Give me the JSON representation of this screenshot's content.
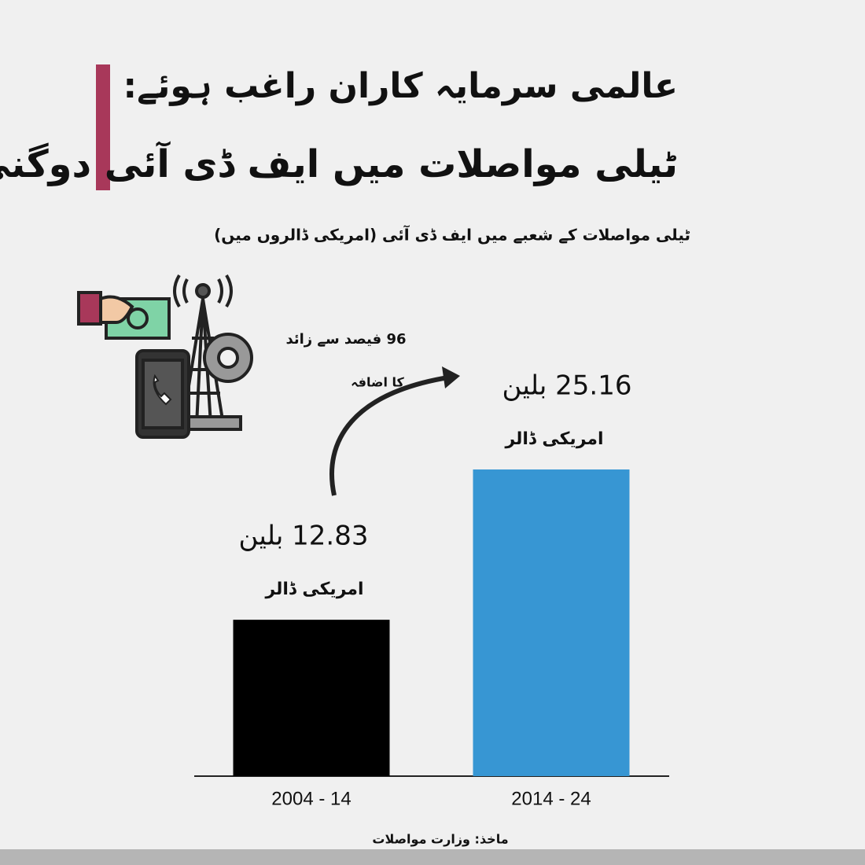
{
  "chart_data": {
    "type": "bar",
    "title": "عالمی سرمایہ کاران راغب ہوئے:",
    "subtitle": "ٹیلی مواصلات میں ایف ڈی آئی دوگنی ہوئی!",
    "caption": "ٹیلی مواصلات کے شعبے میں ایف ڈی آئی (امریکی ڈالروں میں)",
    "annotation": [
      "96 فیصد سے زائد",
      "کا اضافہ"
    ],
    "categories": [
      "2004 - 14",
      "2014 - 24"
    ],
    "values": [
      12.83,
      25.16
    ],
    "value_labels": [
      "12.83 بلین",
      "25.16 بلین"
    ],
    "unit_label": "امریکی ڈالر",
    "colors": [
      "#000000",
      "#3796d3"
    ],
    "source": "ماخذ: وزارت مواصلات"
  }
}
